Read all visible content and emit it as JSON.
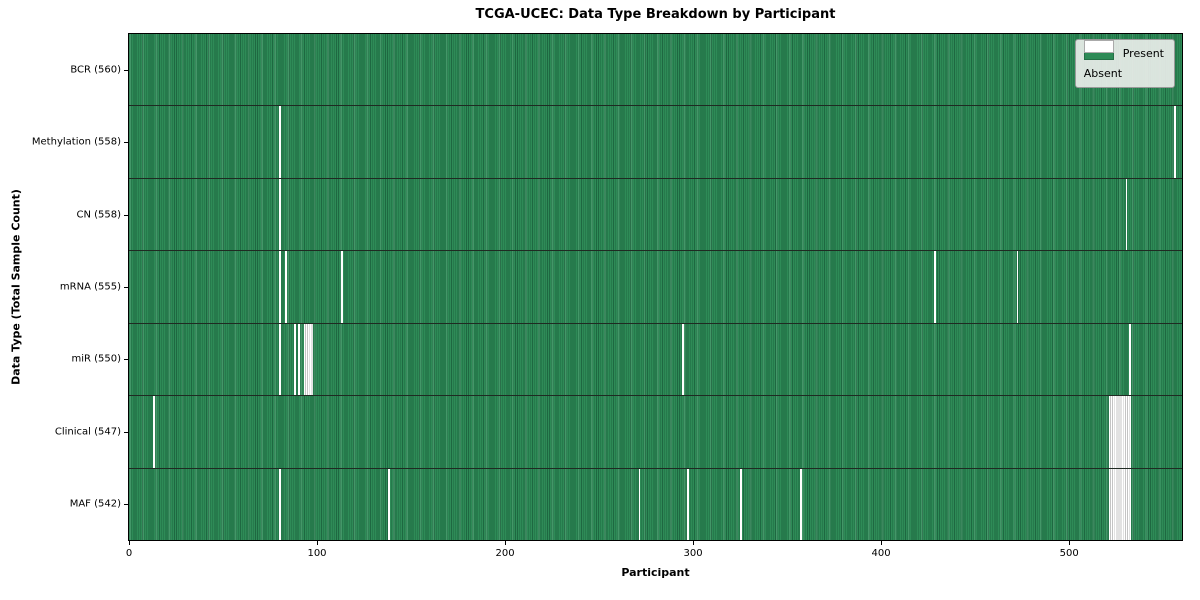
{
  "chart_data": {
    "type": "heatmap",
    "title": "TCGA-UCEC: Data Type Breakdown by Participant",
    "xlabel": "Participant",
    "ylabel": "Data Type (Total Sample Count)",
    "x_ticks": [
      0,
      100,
      200,
      300,
      400,
      500
    ],
    "x_max": 560,
    "grid": false,
    "legend_position": "upper-right",
    "colors": {
      "present": "#2e8b57",
      "present_dark": "#1e6841",
      "absent": "#ffffff",
      "absent_stripe": "#c4c4c4",
      "legend_bg": "#e9ede9"
    },
    "legend": [
      {
        "label": "Present",
        "color": "#2e8b57"
      },
      {
        "label": "Absent",
        "color": "#ffffff"
      }
    ],
    "rows": [
      {
        "label": "BCR (560)",
        "data_type": "BCR",
        "present_count": 560,
        "absent_runs": []
      },
      {
        "label": "Methylation (558)",
        "data_type": "Methylation",
        "present_count": 558,
        "absent_runs": [
          {
            "start": 80,
            "count": 1
          },
          {
            "start": 556,
            "count": 1
          }
        ]
      },
      {
        "label": "CN (558)",
        "data_type": "CN",
        "present_count": 558,
        "absent_runs": [
          {
            "start": 80,
            "count": 1
          },
          {
            "start": 530,
            "count": 1
          }
        ]
      },
      {
        "label": "mRNA (555)",
        "data_type": "mRNA",
        "present_count": 555,
        "absent_runs": [
          {
            "start": 80,
            "count": 1
          },
          {
            "start": 83,
            "count": 1
          },
          {
            "start": 113,
            "count": 1
          },
          {
            "start": 428,
            "count": 1
          },
          {
            "start": 472,
            "count": 1
          }
        ]
      },
      {
        "label": "miR (550)",
        "data_type": "miR",
        "present_count": 550,
        "absent_runs": [
          {
            "start": 80,
            "count": 1
          },
          {
            "start": 88,
            "count": 1
          },
          {
            "start": 90,
            "count": 1
          },
          {
            "start": 93,
            "count": 5
          },
          {
            "start": 294,
            "count": 1
          },
          {
            "start": 532,
            "count": 1
          }
        ]
      },
      {
        "label": "Clinical (547)",
        "data_type": "Clinical",
        "present_count": 547,
        "absent_runs": [
          {
            "start": 13,
            "count": 1
          },
          {
            "start": 521,
            "count": 12
          }
        ]
      },
      {
        "label": "MAF (542)",
        "data_type": "MAF",
        "present_count": 542,
        "absent_runs": [
          {
            "start": 80,
            "count": 1
          },
          {
            "start": 138,
            "count": 1
          },
          {
            "start": 271,
            "count": 1
          },
          {
            "start": 297,
            "count": 1
          },
          {
            "start": 325,
            "count": 1
          },
          {
            "start": 357,
            "count": 1
          },
          {
            "start": 521,
            "count": 12
          }
        ]
      }
    ]
  }
}
